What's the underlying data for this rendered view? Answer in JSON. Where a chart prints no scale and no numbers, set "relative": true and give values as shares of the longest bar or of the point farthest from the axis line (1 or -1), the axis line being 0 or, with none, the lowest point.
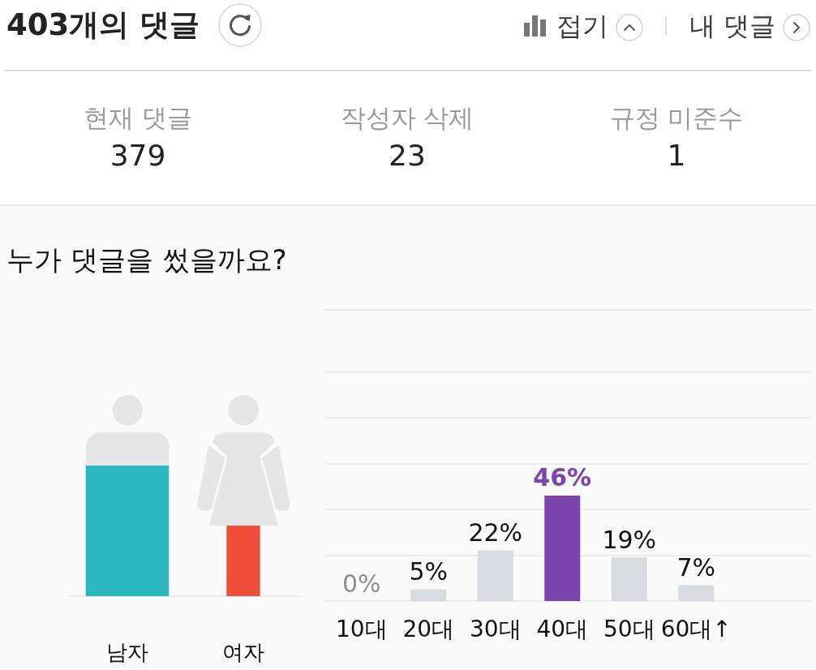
{
  "chart_data": [
    {
      "type": "other",
      "title": "403개의 댓글",
      "categories": [
        "현재 댓글",
        "작성자 삭제",
        "규정 미준수"
      ],
      "values": [
        379,
        23,
        1
      ],
      "data_labels": true,
      "annotations": [
        "접기",
        "내 댓글"
      ]
    },
    {
      "type": "bar",
      "title": "누가 댓글을 썼을까요?",
      "categories": [
        "남자",
        "여자"
      ],
      "values": [
        1,
        0.54
      ],
      "colors": [
        "#2cb8c2",
        "#f24e3c"
      ],
      "relative": true
    },
    {
      "type": "bar",
      "categories": [
        "10대",
        "20대",
        "30대",
        "40대",
        "50대",
        "60대↑"
      ],
      "values": [
        0,
        5,
        22,
        46,
        19,
        7
      ],
      "colors": [
        "#d8dbdf",
        "#d8dbdf",
        "#d8dbdf",
        "#7b45ad",
        "#d8dbdf",
        "#d8dbdf"
      ],
      "value_labels": [
        "0%",
        "5%",
        "22%",
        "46%",
        "19%",
        "7%"
      ],
      "ylim": [
        0,
        127
      ],
      "yticks": [
        {
          "value": 0,
          "label": null
        },
        {
          "value": 20,
          "label": null
        },
        {
          "value": 40,
          "label": null
        },
        {
          "value": 60,
          "label": null
        },
        {
          "value": 80,
          "label": null
        },
        {
          "value": 100,
          "label": null
        }
      ],
      "grid": "y",
      "tick_labels": "x"
    }
  ]
}
